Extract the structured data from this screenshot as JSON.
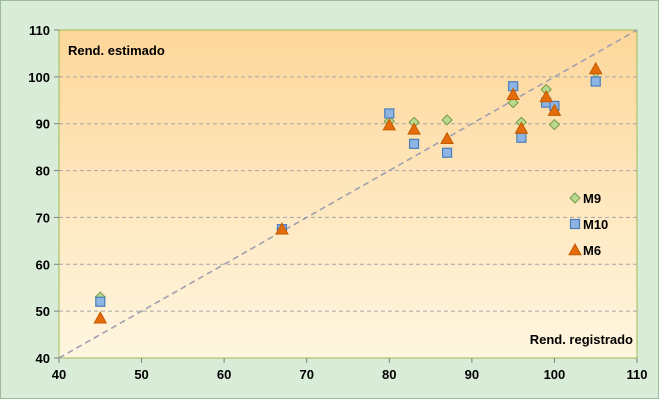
{
  "chart_data": {
    "type": "scatter",
    "title": "",
    "xlabel": "Rend. registrado",
    "ylabel": "Rend. estimado",
    "xlim": [
      40,
      110
    ],
    "ylim": [
      40,
      110
    ],
    "x_ticks": [
      40,
      50,
      60,
      70,
      80,
      90,
      100,
      110
    ],
    "y_ticks": [
      40,
      50,
      60,
      70,
      80,
      90,
      100,
      110
    ],
    "grid": "horizontal-dashed",
    "reference_line": {
      "type": "identity",
      "from": [
        40,
        40
      ],
      "to": [
        110,
        110
      ]
    },
    "legend_position": "right-inside",
    "colors": {
      "background_top": "#fdd79a",
      "background_bottom": "#fff6e0",
      "outer_frame": "#d8ecd8",
      "grid": "#a6a6a6",
      "reference_line": "#a0a0b0"
    },
    "series": [
      {
        "name": "M9",
        "marker": "diamond",
        "color": "#b9d98f",
        "edge": "#7a9a4a",
        "points": [
          [
            45,
            53
          ],
          [
            67,
            67.5
          ],
          [
            80,
            90.5
          ],
          [
            83,
            90.3
          ],
          [
            87,
            90.8
          ],
          [
            95,
            94.5
          ],
          [
            96,
            90.3
          ],
          [
            99,
            97.3
          ],
          [
            100,
            89.8
          ],
          [
            105,
            101
          ]
        ]
      },
      {
        "name": "M10",
        "marker": "square",
        "color": "#8eb4e3",
        "edge": "#4a7ebb",
        "points": [
          [
            45,
            52
          ],
          [
            67,
            67.5
          ],
          [
            80,
            92.2
          ],
          [
            83,
            85.7
          ],
          [
            87,
            83.8
          ],
          [
            95,
            98
          ],
          [
            96,
            87
          ],
          [
            99,
            94.5
          ],
          [
            100,
            93.8
          ],
          [
            105,
            99
          ]
        ]
      },
      {
        "name": "M6",
        "marker": "triangle",
        "color": "#e46c0a",
        "edge": "#c55a00",
        "points": [
          [
            45,
            48.5
          ],
          [
            67,
            67.5
          ],
          [
            80,
            89.7
          ],
          [
            83,
            88.8
          ],
          [
            87,
            86.8
          ],
          [
            95,
            96.2
          ],
          [
            96,
            89
          ],
          [
            99,
            95.7
          ],
          [
            100,
            92.8
          ],
          [
            105,
            101.7
          ]
        ]
      }
    ]
  }
}
